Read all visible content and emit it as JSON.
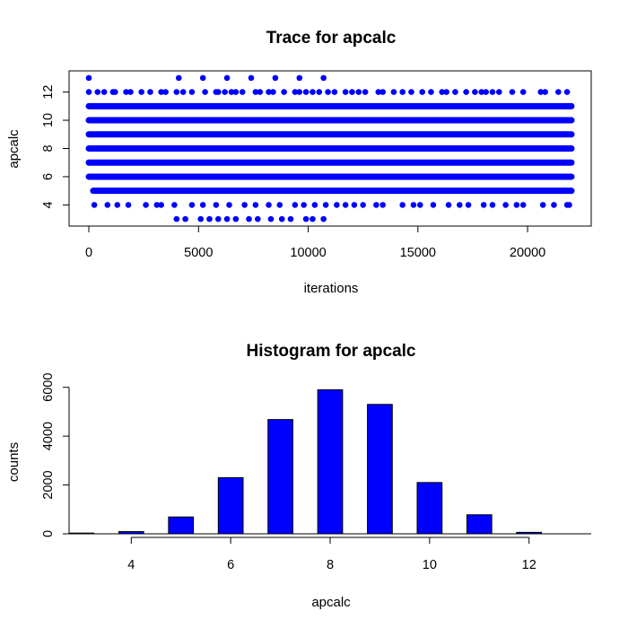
{
  "chart_data": [
    {
      "type": "scatter",
      "title": "Trace for  apcalc",
      "xlabel": "iterations",
      "ylabel": "apcalc",
      "xlim": [
        -900,
        22900
      ],
      "ylim": [
        2.5,
        13.5
      ],
      "x_ticks": [
        0,
        5000,
        10000,
        15000,
        20000
      ],
      "y_ticks": [
        4,
        6,
        8,
        10,
        12
      ],
      "marker_color": "#0000ff",
      "iterations_max": 22000,
      "bands": [
        {
          "value": 3,
          "points": [
            4000,
            4400,
            5100,
            5500,
            5900,
            6300,
            6700,
            7300,
            7700,
            8300,
            8800,
            9200,
            9900,
            10200,
            10700
          ]
        },
        {
          "value": 4,
          "points": [
            250,
            850,
            1300,
            1800,
            2600,
            3100,
            3300,
            3900,
            4700,
            5200,
            5800,
            6400,
            7100,
            7600,
            8200,
            8700,
            9400,
            9800,
            10300,
            10800,
            11300,
            11700,
            12100,
            12500,
            13100,
            13400,
            14300,
            14800,
            15100,
            15700,
            16400,
            16900,
            17300,
            18000,
            18400,
            19000,
            19500,
            19800,
            20700,
            21200,
            21800,
            21900
          ]
        },
        {
          "value": 5,
          "dense_from": 200,
          "dense_to": 22000
        },
        {
          "value": 6,
          "dense_from": 0,
          "dense_to": 22000
        },
        {
          "value": 7,
          "dense_from": 0,
          "dense_to": 22000
        },
        {
          "value": 8,
          "dense_from": 0,
          "dense_to": 22000
        },
        {
          "value": 9,
          "dense_from": 0,
          "dense_to": 22000
        },
        {
          "value": 10,
          "dense_from": 0,
          "dense_to": 22000
        },
        {
          "value": 11,
          "dense_from": 0,
          "dense_to": 22000
        },
        {
          "value": 12,
          "points": [
            0,
            400,
            700,
            1100,
            1200,
            1700,
            1900,
            2400,
            2800,
            3300,
            3500,
            4000,
            4300,
            4700,
            5300,
            5800,
            5900,
            6200,
            6500,
            6700,
            7000,
            7600,
            7800,
            8200,
            8400,
            8900,
            9400,
            9600,
            9900,
            10200,
            10500,
            10900,
            11200,
            11700,
            12000,
            12300,
            12600,
            13200,
            13400,
            13900,
            14300,
            14700,
            15200,
            15600,
            16100,
            16300,
            16700,
            17200,
            17600,
            17900,
            18100,
            18400,
            18700,
            19300,
            19800,
            20600,
            20800,
            21400,
            21800
          ]
        },
        {
          "value": 13,
          "points": [
            0,
            4100,
            5200,
            6300,
            7400,
            8500,
            9600,
            10700
          ]
        }
      ]
    },
    {
      "type": "bar",
      "title": "Histogram for  apcalc",
      "xlabel": "apcalc",
      "ylabel": "counts",
      "xlim": [
        2.75,
        13.25
      ],
      "ylim": [
        0,
        6100
      ],
      "x_ticks": [
        4,
        6,
        8,
        10,
        12
      ],
      "y_ticks": [
        0,
        2000,
        4000,
        6000
      ],
      "bar_color": "#0000ff",
      "categories": [
        3,
        4,
        5,
        6,
        7,
        8,
        9,
        10,
        11,
        12,
        13
      ],
      "values": [
        30,
        90,
        690,
        2300,
        4680,
        5900,
        5300,
        2100,
        780,
        60,
        0
      ]
    }
  ]
}
